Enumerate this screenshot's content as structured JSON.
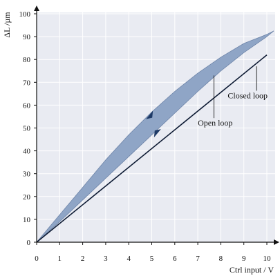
{
  "chart_data": {
    "type": "line",
    "title": "",
    "xlabel": "Ctrl input / V",
    "ylabel": "ΔL /µm",
    "xlim": [
      0,
      10.5
    ],
    "ylim": [
      0,
      100
    ],
    "xticks": [
      0,
      1,
      2,
      3,
      4,
      5,
      6,
      7,
      8,
      9,
      10
    ],
    "yticks": [
      0,
      10,
      20,
      30,
      40,
      50,
      60,
      70,
      80,
      90,
      100
    ],
    "grid": true,
    "legend": "none",
    "series": [
      {
        "name": "Open loop",
        "kind": "hysteresis-band",
        "color": "#8fa5c6",
        "upper": {
          "x": [
            0,
            1,
            2,
            3,
            4,
            5,
            6,
            7,
            8,
            9,
            10,
            10.3
          ],
          "y": [
            0,
            12,
            24,
            36,
            47,
            57,
            66,
            74,
            81,
            87,
            91,
            92.5
          ]
        },
        "lower": {
          "x": [
            0,
            1,
            2,
            3,
            4,
            5,
            6,
            7,
            8,
            9,
            10,
            10.3
          ],
          "y": [
            0,
            9,
            18.5,
            28,
            37.5,
            47,
            56.5,
            66,
            75,
            83,
            90,
            92.5
          ]
        }
      },
      {
        "name": "Closed loop",
        "color": "#0d1a33",
        "x": [
          0,
          10
        ],
        "y": [
          0,
          82
        ]
      }
    ],
    "annotations": [
      {
        "text": "Open loop",
        "x": 7.0,
        "y": 51,
        "leader_to": [
          7.7,
          73
        ]
      },
      {
        "text": "Closed loop",
        "x": 8.3,
        "y": 63,
        "leader_to": [
          9.55,
          77
        ]
      }
    ]
  }
}
